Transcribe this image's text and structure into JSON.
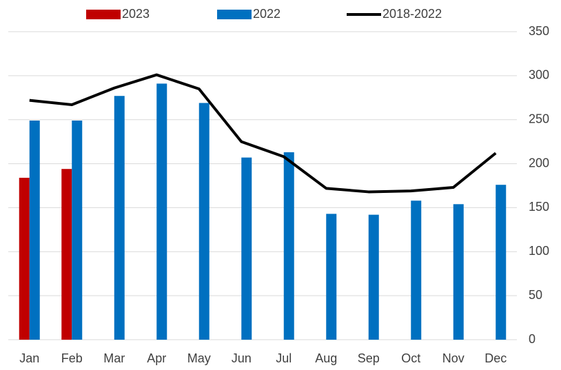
{
  "chart_data": {
    "type": "bar",
    "categories": [
      "Jan",
      "Feb",
      "Mar",
      "Apr",
      "May",
      "Jun",
      "Jul",
      "Aug",
      "Sep",
      "Oct",
      "Nov",
      "Dec"
    ],
    "series": [
      {
        "name": "2023",
        "type": "bar",
        "color": "#c00000",
        "values": [
          184,
          194,
          null,
          null,
          null,
          null,
          null,
          null,
          null,
          null,
          null,
          null
        ]
      },
      {
        "name": "2022",
        "type": "bar",
        "color": "#0070c0",
        "values": [
          249,
          249,
          277,
          291,
          269,
          207,
          213,
          143,
          142,
          158,
          154,
          176
        ]
      },
      {
        "name": "2018-2022",
        "type": "line",
        "color": "#000000",
        "values": [
          272,
          267,
          286,
          301,
          285,
          225,
          208,
          172,
          168,
          169,
          173,
          212
        ]
      }
    ],
    "ylim": [
      0,
      350
    ],
    "yticks": [
      0,
      50,
      100,
      150,
      200,
      250,
      300,
      350
    ],
    "grid": true,
    "legend": "top"
  }
}
